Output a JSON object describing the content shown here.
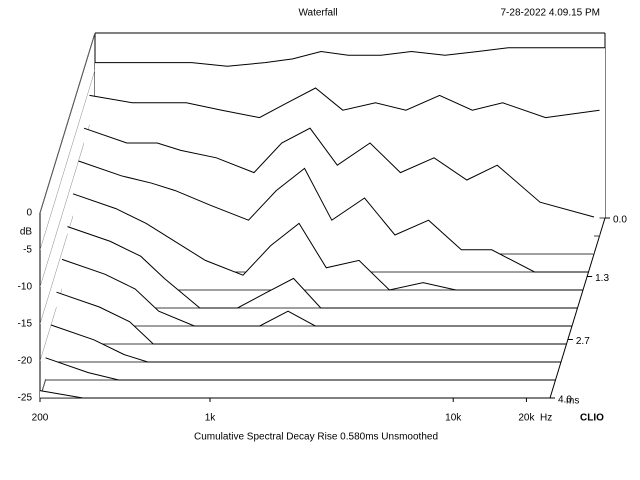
{
  "chart_data": {
    "type": "waterfall",
    "title": "Waterfall",
    "date": "7-28-2022 4.09.15 PM",
    "y_label": "dB",
    "x_unit": "Hz",
    "z_unit": "ms",
    "brand": "CLIO",
    "caption": "Cumulative Spectral Decay   Rise 0.580ms   Unsmoothed",
    "xlog": true,
    "xlim": [
      200,
      25000
    ],
    "xticks": [
      200,
      {
        "value": 1000,
        "label": "1k"
      },
      {
        "value": 10000,
        "label": "10k"
      },
      {
        "value": 20000,
        "label": "20k"
      }
    ],
    "ylim": [
      -25,
      0
    ],
    "yticks": [
      0,
      -5,
      -10,
      -15,
      -20,
      -25
    ],
    "zlim": [
      0,
      4
    ],
    "zticks": [
      {
        "value": 0,
        "label": "0.0"
      },
      1.3,
      2.7,
      {
        "value": 4,
        "label": "4.0"
      }
    ],
    "color": "#000000",
    "x": [
      200,
      300,
      400,
      500,
      700,
      1000,
      1300,
      1700,
      2200,
      3000,
      4000,
      5500,
      7500,
      10000,
      15000,
      25000
    ],
    "slices": [
      {
        "time": 0,
        "values": [
          -4,
          -4,
          -4,
          -4,
          -4.5,
          -4,
          -3.5,
          -2.5,
          -3,
          -3,
          -2.5,
          -3,
          -2.5,
          -2,
          -2,
          -2
        ]
      },
      {
        "time": 0.4,
        "values": [
          -6,
          -7,
          -7,
          -7,
          -8,
          -9,
          -7,
          -5,
          -8,
          -7,
          -8,
          -6,
          -8,
          -7,
          -9,
          -8
        ]
      },
      {
        "time": 0.8,
        "values": [
          -8,
          -10,
          -10,
          -11,
          -12,
          -14,
          -10,
          -8,
          -13,
          -10,
          -14,
          -12,
          -15,
          -13,
          -18,
          -20
        ]
      },
      {
        "time": 1.2,
        "values": [
          -10,
          -12,
          -13,
          -14,
          -16,
          -18,
          -14,
          -11,
          -18,
          -15,
          -20,
          -18,
          -22,
          -22,
          -25,
          -25
        ]
      },
      {
        "time": 1.6,
        "values": [
          -12,
          -14,
          -16,
          -18,
          -21,
          -23,
          -19,
          -16,
          -22,
          -21,
          -25,
          -24,
          -25,
          -25,
          -25,
          -25
        ]
      },
      {
        "time": 2.0,
        "values": [
          -14,
          -16,
          -18,
          -21,
          -25,
          -25,
          -23,
          -21,
          -25,
          -25,
          -25,
          -25,
          -25,
          -25,
          -25,
          -25
        ]
      },
      {
        "time": 2.4,
        "values": [
          -16,
          -18,
          -20,
          -23,
          -25,
          -25,
          -25,
          -23,
          -25,
          -25,
          -25,
          -25,
          -25,
          -25,
          -25,
          -25
        ]
      },
      {
        "time": 2.8,
        "values": [
          -18,
          -20,
          -22,
          -25,
          -25,
          -25,
          -25,
          -25,
          -25,
          -25,
          -25,
          -25,
          -25,
          -25,
          -25,
          -25
        ]
      },
      {
        "time": 3.2,
        "values": [
          -20,
          -22,
          -24,
          -25,
          -25,
          -25,
          -25,
          -25,
          -25,
          -25,
          -25,
          -25,
          -25,
          -25,
          -25,
          -25
        ]
      },
      {
        "time": 3.6,
        "values": [
          -22,
          -24,
          -25,
          -25,
          -25,
          -25,
          -25,
          -25,
          -25,
          -25,
          -25,
          -25,
          -25,
          -25,
          -25,
          -25
        ]
      },
      {
        "time": 4,
        "values": [
          -24,
          -25,
          -25,
          -25,
          -25,
          -25,
          -25,
          -25,
          -25,
          -25,
          -25,
          -25,
          -25,
          -25,
          -25,
          -25
        ]
      }
    ]
  }
}
